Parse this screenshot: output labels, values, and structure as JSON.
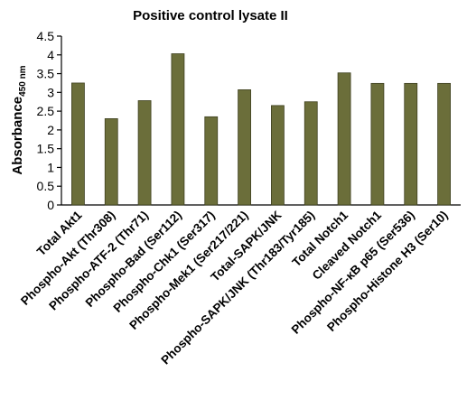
{
  "chart_data": {
    "type": "bar",
    "title": "Positive control lysate II",
    "xlabel": "",
    "ylabel": "Absorbance",
    "ylabel_subscript": "450 nm",
    "ylim": [
      0,
      4.5
    ],
    "yticks": [
      "0",
      "0.5",
      "1",
      "1.5",
      "2",
      "2.5",
      "3",
      "3.5",
      "4",
      "4.5"
    ],
    "grid": false,
    "categories": [
      "Total Akt1",
      "Phospho-Akt (Thr308)",
      "Phospho-ATF-2 (Thr71)",
      "Phospho-Bad (Ser112)",
      "Phospho-Chk1 (Ser317)",
      "Phospho-Mek1 (Ser217/221)",
      "Total-SAPK/JNK",
      "Phospho-SAPK/JNK (Thr183/Tyr185)",
      "Total Notch1",
      "Cleaved Notch1",
      "Phospho-NF-κB p65 (Ser536)",
      "Phospho-Histone H3 (Ser10)"
    ],
    "values": [
      3.25,
      2.3,
      2.78,
      4.03,
      2.35,
      3.07,
      2.65,
      2.75,
      3.52,
      3.24,
      3.24,
      3.24
    ],
    "colors": {
      "bar": "#6b6e3a",
      "bar_edge": "#3e4020",
      "axis": "#000000"
    }
  }
}
